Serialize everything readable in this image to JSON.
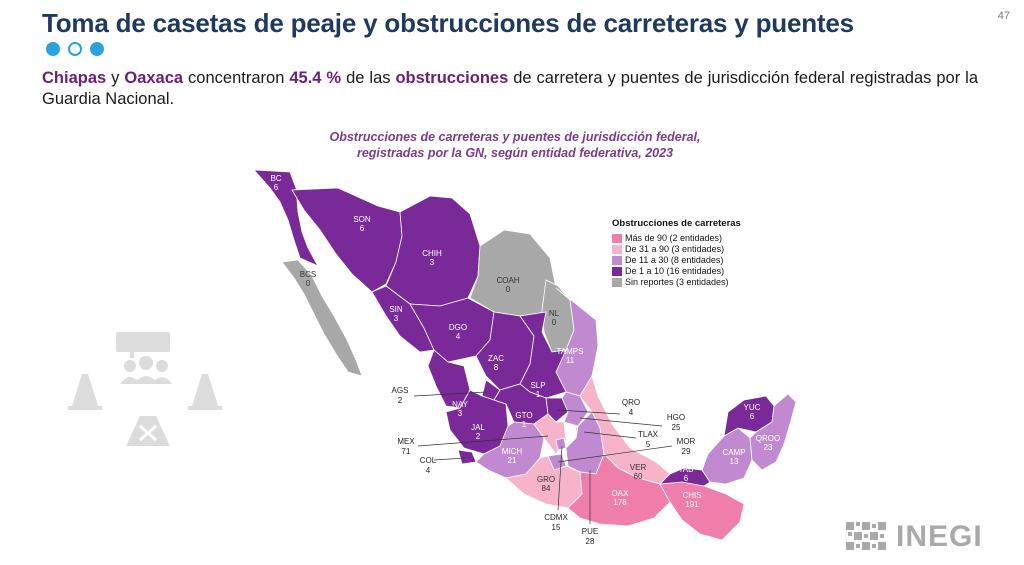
{
  "title": "Toma de casetas de peaje y obstrucciones de carreteras y puentes",
  "page_number": "47",
  "lead": {
    "s1": "Chiapas",
    "s2": " y ",
    "s3": "Oaxaca",
    "s4": " concentraron ",
    "s5": "45.4 %",
    "s6": " de las ",
    "s7": "obstrucciones",
    "s8": " de carretera y puentes de jurisdicción federal registradas por la Guardia Nacional."
  },
  "map_title_1": "Obstrucciones de carreteras y puentes de jurisdicción federal,",
  "map_title_2": "registradas por la GN, según entidad federativa, 2023",
  "legend": {
    "title": "Obstrucciones de carreteras",
    "items": [
      {
        "label": "Más de 90 (2 entidades)",
        "color": "#f07eaa"
      },
      {
        "label": "De 31 a 90 (3 entidades)",
        "color": "#f7b3c9"
      },
      {
        "label": "De 11 a 30 (8 entidades)",
        "color": "#c18ad0"
      },
      {
        "label": "De 1 a 10 (16 entidades)",
        "color": "#7a2a98"
      },
      {
        "label": "Sin reportes (3 entidades)",
        "color": "#a8a8a8"
      }
    ]
  },
  "states": [
    {
      "code": "BC",
      "value": "6"
    },
    {
      "code": "SON",
      "value": "6"
    },
    {
      "code": "CHIH",
      "value": "3"
    },
    {
      "code": "BCS",
      "value": "0"
    },
    {
      "code": "COAH",
      "value": "0"
    },
    {
      "code": "NL",
      "value": "0"
    },
    {
      "code": "SIN",
      "value": "3"
    },
    {
      "code": "DGO",
      "value": "4"
    },
    {
      "code": "TAMPS",
      "value": "11"
    },
    {
      "code": "ZAC",
      "value": "8"
    },
    {
      "code": "SLP",
      "value": "1"
    },
    {
      "code": "NAY",
      "value": "3"
    },
    {
      "code": "GTO",
      "value": "1"
    },
    {
      "code": "JAL",
      "value": "2"
    },
    {
      "code": "MICH",
      "value": "21"
    },
    {
      "code": "GRO",
      "value": "84"
    },
    {
      "code": "OAX",
      "value": "178"
    },
    {
      "code": "CHIS",
      "value": "191"
    },
    {
      "code": "VER",
      "value": "60"
    },
    {
      "code": "TAB",
      "value": "6"
    },
    {
      "code": "CAMP",
      "value": "13"
    },
    {
      "code": "YUC",
      "value": "6"
    },
    {
      "code": "QROO",
      "value": "23"
    }
  ],
  "callouts": [
    {
      "code": "AGS",
      "value": "2"
    },
    {
      "code": "QRO",
      "value": "4"
    },
    {
      "code": "HGO",
      "value": "25"
    },
    {
      "code": "TLAX",
      "value": "5"
    },
    {
      "code": "MOR",
      "value": "29"
    },
    {
      "code": "MEX",
      "value": "71"
    },
    {
      "code": "COL",
      "value": "4"
    },
    {
      "code": "CDMX",
      "value": "15"
    },
    {
      "code": "PUE",
      "value": "28"
    }
  ],
  "logo": "INEGI"
}
